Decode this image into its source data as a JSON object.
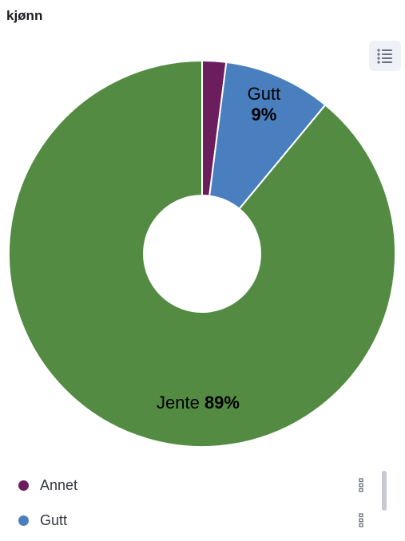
{
  "panel": {
    "title": "kjønn"
  },
  "chart_data": {
    "type": "pie",
    "donut": true,
    "title": "",
    "slices": [
      {
        "label": "Annet",
        "value": 2,
        "color": "#6b1d5e"
      },
      {
        "label": "Gutt",
        "value": 9,
        "color": "#4a7fbf"
      },
      {
        "label": "Jente",
        "value": 89,
        "color": "#538b42"
      }
    ],
    "data_labels": [
      {
        "category": "Gutt",
        "text": "9%"
      },
      {
        "category": "Jente",
        "text": "89%"
      }
    ],
    "legend": "bottom"
  },
  "legend": {
    "items": [
      {
        "label": "Annet",
        "color": "#6b1d5e"
      },
      {
        "label": "Gutt",
        "color": "#4a7fbf"
      }
    ]
  },
  "icons": {
    "legend_toggle": "list-icon",
    "legend_action": "vertical-dots-icon"
  }
}
